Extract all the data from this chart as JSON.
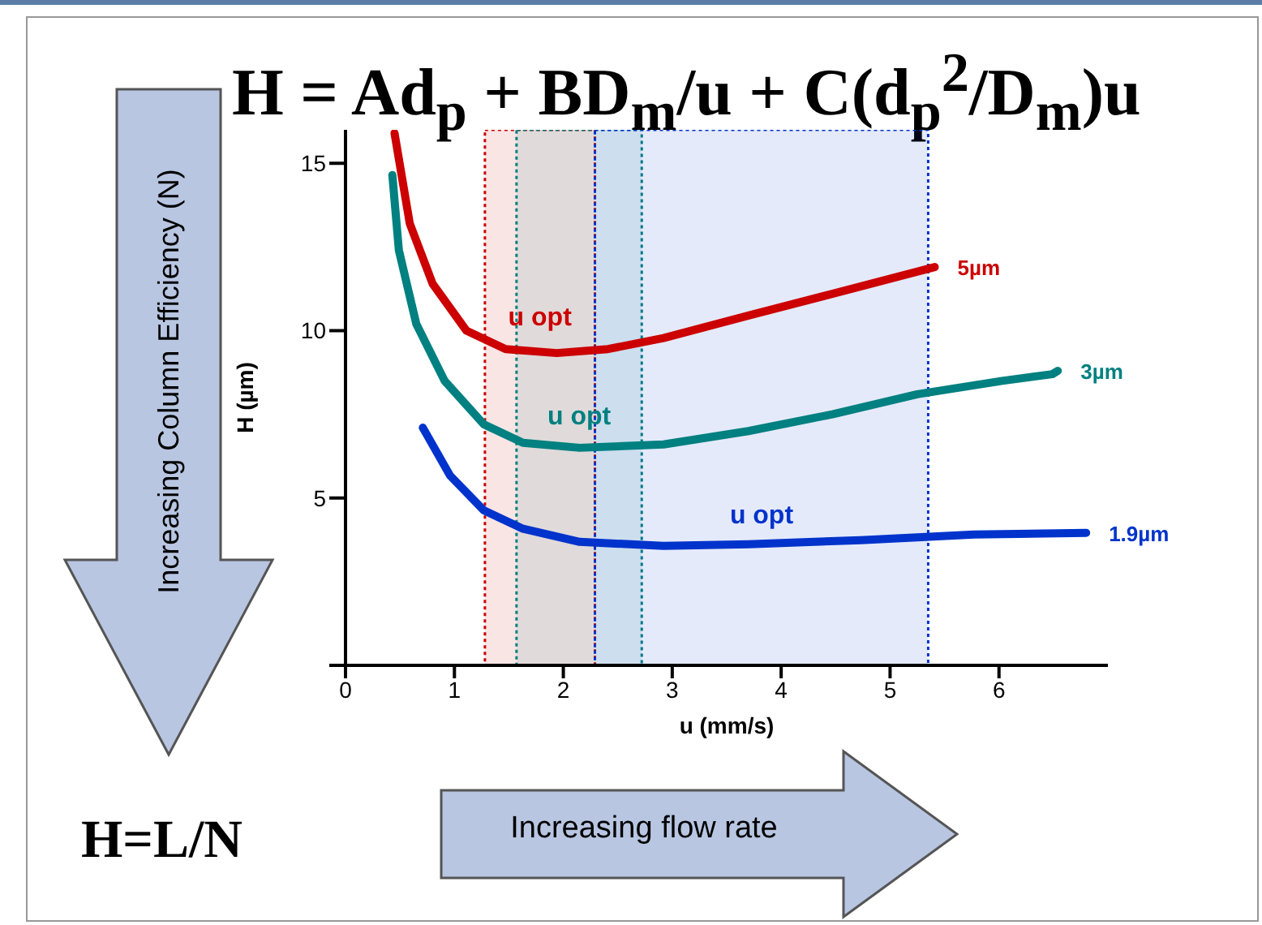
{
  "chart_data": {
    "type": "line",
    "title": "H = Ad$_{p}$ + BD$_{m}$/u + C(d$_{p}$$^{2}$/D$_{m}$)u",
    "xlabel": "u (mm/s)",
    "ylabel": "H (µm)",
    "xlim": [
      0,
      7
    ],
    "xticks": [
      0,
      1,
      2,
      3,
      4,
      5,
      6
    ],
    "ylim": [
      0,
      16
    ],
    "yticks": [
      {
        "value": 0,
        "label": null
      },
      5,
      10,
      15
    ],
    "grid": false,
    "legend": false,
    "marker": "none",
    "series": [
      {
        "name": "5µm",
        "color": "#cc0000",
        "x": [
          0.45,
          0.59,
          0.8,
          1.11,
          1.47,
          1.94,
          2.41,
          2.92,
          3.7,
          4.47,
          5.41
        ],
        "values": [
          15.9,
          13.2,
          11.4,
          10.0,
          9.45,
          9.33,
          9.45,
          9.78,
          10.45,
          11.1,
          11.9
        ]
      },
      {
        "name": "3µm",
        "color": "#008080",
        "x": [
          0.43,
          0.49,
          0.65,
          0.91,
          1.27,
          1.63,
          2.15,
          2.92,
          3.7,
          4.47,
          5.25,
          6.03,
          6.49,
          6.54
        ],
        "values": [
          14.65,
          12.4,
          10.2,
          8.5,
          7.2,
          6.65,
          6.5,
          6.6,
          7.0,
          7.5,
          8.1,
          8.5,
          8.7,
          8.8
        ]
      },
      {
        "name": "1.9µm",
        "color": "#0033cc",
        "x": [
          0.71,
          0.96,
          1.27,
          1.63,
          2.15,
          2.92,
          3.7,
          4.73,
          5.77,
          6.8
        ],
        "values": [
          7.1,
          5.67,
          4.63,
          4.08,
          3.69,
          3.57,
          3.62,
          3.74,
          3.91,
          3.96
        ]
      }
    ],
    "bands": [
      {
        "axis": "x",
        "from": 1.28,
        "to": 2.29,
        "label": "u opt",
        "color": "#cc0000"
      },
      {
        "axis": "x",
        "from": 1.57,
        "to": 2.72,
        "label": "u opt",
        "color": "#008080"
      },
      {
        "axis": "x",
        "from": 2.29,
        "to": 5.35,
        "label": "u opt",
        "color": "#0033cc"
      }
    ],
    "annotations": [
      "Increasing Column Efficiency (N)",
      "Increasing flow rate",
      "H=L/N"
    ]
  }
}
